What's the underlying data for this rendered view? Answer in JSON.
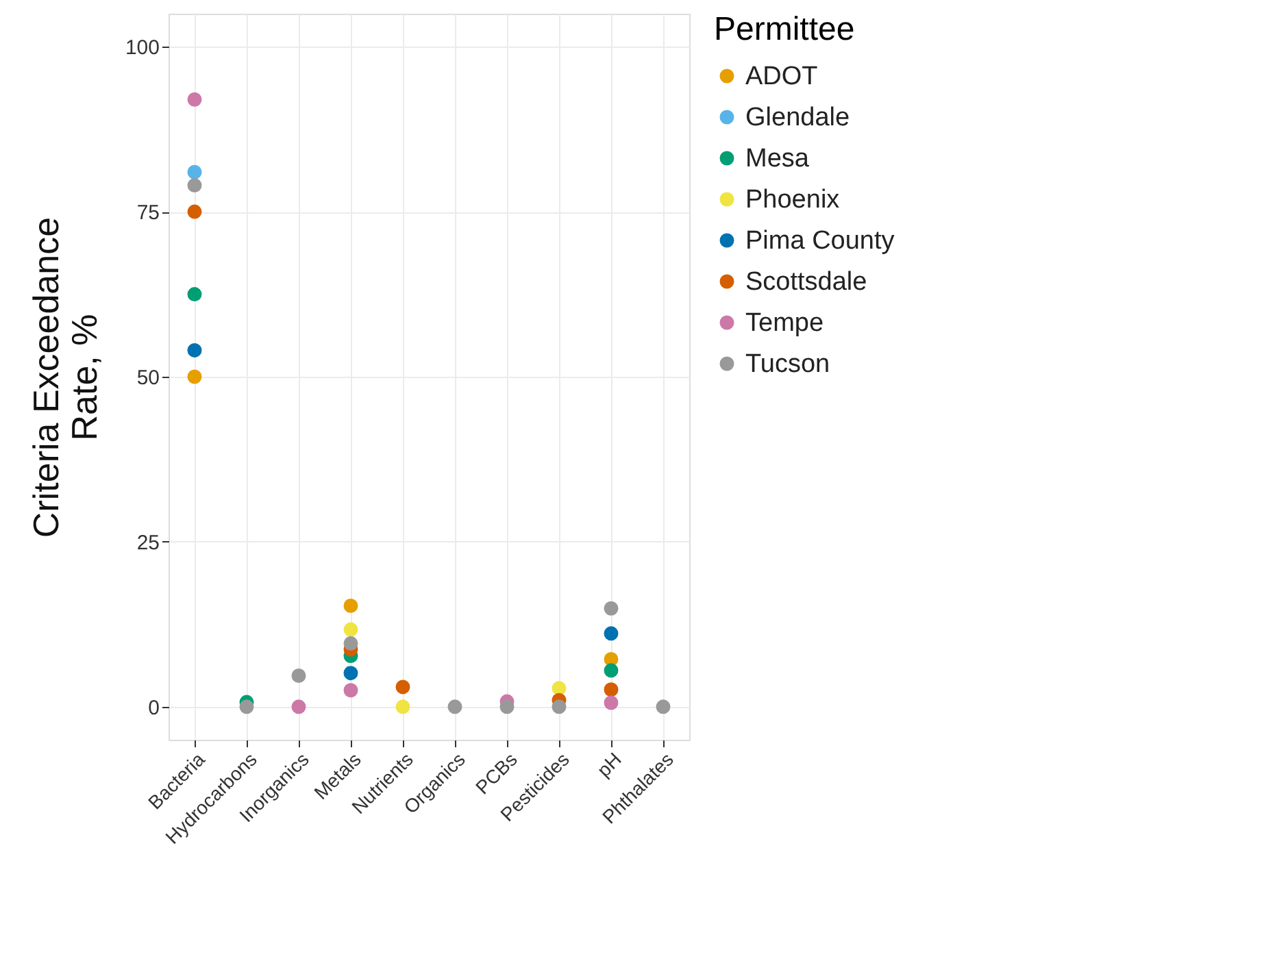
{
  "chart_data": {
    "type": "scatter",
    "xlabel": null,
    "ylabel": "Criteria Exceedance\nRate, %",
    "legend_title": "Permittee",
    "legend": "right",
    "grid": true,
    "marker": "circle",
    "categories": [
      "Bacteria",
      "Hydrocarbons",
      "Inorganics",
      "Metals",
      "Nutrients",
      "Organics",
      "PCBs",
      "Pesticides",
      "pH",
      "Phthalates"
    ],
    "ylim": [
      -5,
      105
    ],
    "yticks": [
      0,
      25,
      50,
      75,
      100
    ],
    "series": [
      {
        "name": "ADOT",
        "color": "#e69f00",
        "values": [
          50,
          null,
          null,
          15.3,
          null,
          null,
          null,
          null,
          7.2,
          null
        ]
      },
      {
        "name": "Glendale",
        "color": "#56b4e9",
        "values": [
          81,
          null,
          null,
          null,
          null,
          null,
          null,
          null,
          null,
          null
        ]
      },
      {
        "name": "Mesa",
        "color": "#009e73",
        "values": [
          62.5,
          0.7,
          null,
          7.7,
          null,
          null,
          null,
          null,
          5.5,
          null
        ]
      },
      {
        "name": "Phoenix",
        "color": "#f0e442",
        "values": [
          null,
          null,
          null,
          11.7,
          0,
          null,
          null,
          2.8,
          null,
          null
        ]
      },
      {
        "name": "Pima County",
        "color": "#0072b2",
        "values": [
          54,
          null,
          null,
          5.1,
          null,
          null,
          null,
          null,
          11.1,
          null
        ]
      },
      {
        "name": "Scottsdale",
        "color": "#d55e00",
        "values": [
          75,
          null,
          null,
          8.7,
          3.0,
          null,
          null,
          1.0,
          2.6,
          null
        ]
      },
      {
        "name": "Tempe",
        "color": "#cc79a7",
        "values": [
          92,
          null,
          0,
          2.5,
          null,
          null,
          0.8,
          null,
          0.6,
          null
        ]
      },
      {
        "name": "Tucson",
        "color": "#999999",
        "values": [
          79,
          0,
          4.7,
          9.6,
          null,
          0,
          0,
          0,
          14.9,
          0
        ]
      }
    ]
  }
}
